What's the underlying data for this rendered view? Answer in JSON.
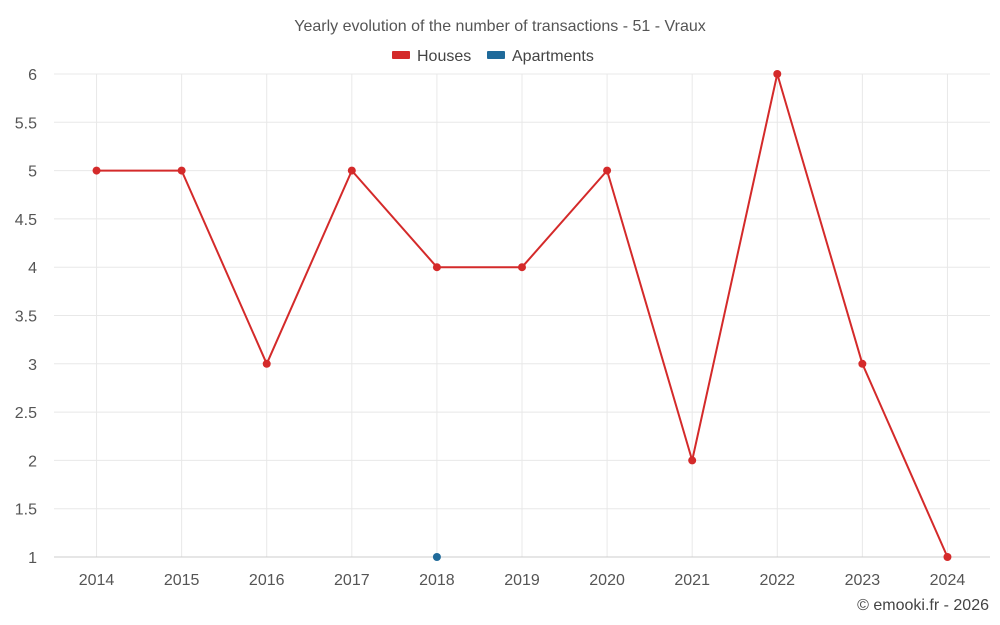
{
  "chart_data": {
    "type": "line",
    "title": "Yearly evolution of the number of transactions - 51 - Vraux",
    "xlabel": "",
    "ylabel": "",
    "categories": [
      "2014",
      "2015",
      "2016",
      "2017",
      "2018",
      "2019",
      "2020",
      "2021",
      "2022",
      "2023",
      "2024"
    ],
    "ylim": [
      1,
      6
    ],
    "yticks": [
      "1",
      "1.5",
      "2",
      "2.5",
      "3",
      "3.5",
      "4",
      "4.5",
      "5",
      "5.5",
      "6"
    ],
    "grid": true,
    "legend_position": "top-center",
    "series": [
      {
        "name": "Houses",
        "color": "#d42a2a",
        "values": [
          5,
          5,
          3,
          5,
          4,
          4,
          5,
          2,
          6,
          3,
          1
        ]
      },
      {
        "name": "Apartments",
        "color": "#1f6a9a",
        "values": [
          null,
          null,
          null,
          null,
          1,
          null,
          null,
          null,
          null,
          null,
          null
        ]
      }
    ]
  },
  "credit": "© emooki.fr - 2026"
}
